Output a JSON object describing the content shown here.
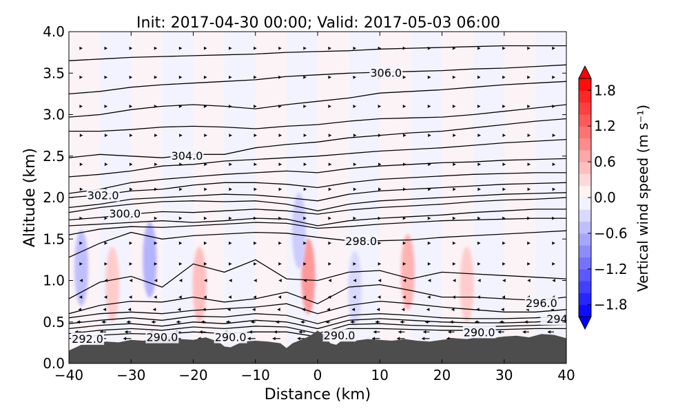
{
  "chart_data": {
    "type": "contour",
    "title": "Init: 2017-04-30 00:00; Valid: 2017-05-03 06:00",
    "xlabel": "Distance (km)",
    "ylabel": "Altitude (km)",
    "xlim": [
      -40,
      40
    ],
    "ylim": [
      0.0,
      4.0
    ],
    "xticks": [
      -40,
      -30,
      -20,
      -10,
      0,
      10,
      20,
      30,
      40
    ],
    "xtick_labels": [
      "−40",
      "−30",
      "−20",
      "−10",
      "0",
      "10",
      "20",
      "30",
      "40"
    ],
    "yticks": [
      0.0,
      0.5,
      1.0,
      1.5,
      2.0,
      2.5,
      3.0,
      3.5,
      4.0
    ],
    "ytick_labels": [
      "0.0",
      "0.5",
      "1.0",
      "1.5",
      "2.0",
      "2.5",
      "3.0",
      "3.5",
      "4.0"
    ],
    "grid": false,
    "filled_field": {
      "name": "Vertical wind speed",
      "colormap": "bwr",
      "range": [
        -2.0,
        2.0
      ],
      "updrafts": [
        {
          "x": -33,
          "z": 0.95,
          "value": 0.4
        },
        {
          "x": -19,
          "z": 0.95,
          "value": 0.5
        },
        {
          "x": -1.5,
          "z": 1.05,
          "value": 0.8
        },
        {
          "x": 14.5,
          "z": 1.1,
          "value": 0.6
        },
        {
          "x": 24,
          "z": 0.95,
          "value": 0.4
        }
      ],
      "downdrafts": [
        {
          "x": -38,
          "z": 1.15,
          "value": -0.5
        },
        {
          "x": -27,
          "z": 1.25,
          "value": -0.6
        },
        {
          "x": -3,
          "z": 1.6,
          "value": -0.4
        },
        {
          "x": 6,
          "z": 0.9,
          "value": -0.3
        }
      ]
    },
    "contour_field": {
      "name": "Potential temperature",
      "labels": [
        {
          "text": "306.0",
          "x": 11,
          "z": 3.5
        },
        {
          "text": "304.0",
          "x": -21,
          "z": 2.5
        },
        {
          "text": "302.0",
          "x": -34.5,
          "z": 2.02
        },
        {
          "text": "300.0",
          "x": -31,
          "z": 1.8
        },
        {
          "text": "298.0",
          "x": 7,
          "z": 1.47
        },
        {
          "text": "296.0",
          "x": 36,
          "z": 0.72
        },
        {
          "text": "294",
          "x": 38.5,
          "z": 0.53
        },
        {
          "text": "292.0",
          "x": -37,
          "z": 0.29
        },
        {
          "text": "290.0",
          "x": -25,
          "z": 0.31
        },
        {
          "text": "290.0",
          "x": -14,
          "z": 0.31
        },
        {
          "text": "290.0",
          "x": 3.5,
          "z": 0.33
        },
        {
          "text": "290.0",
          "x": 26,
          "z": 0.37
        }
      ],
      "lines": [
        {
          "z": [
            3.65,
            3.67,
            3.69,
            3.7,
            3.71,
            3.72,
            3.73,
            3.75,
            3.76,
            3.77,
            3.79,
            3.8,
            3.81,
            3.82,
            3.83,
            3.83,
            3.83
          ]
        },
        {
          "z": [
            3.25,
            3.28,
            3.33,
            3.36,
            3.38,
            3.4,
            3.42,
            3.46,
            3.48,
            3.5,
            3.51,
            3.52,
            3.53,
            3.55,
            3.56,
            3.58,
            3.6
          ]
        },
        {
          "z": [
            2.97,
            3.0,
            3.06,
            3.1,
            3.12,
            3.1,
            3.07,
            3.12,
            3.16,
            3.2,
            3.26,
            3.28,
            3.3,
            3.33,
            3.36,
            3.38,
            3.4
          ]
        },
        {
          "z": [
            2.8,
            2.8,
            2.82,
            2.85,
            2.86,
            2.85,
            2.83,
            2.86,
            2.88,
            2.92,
            2.95,
            2.96,
            2.97,
            3.0,
            3.04,
            3.08,
            3.12
          ]
        },
        {
          "z": [
            2.48,
            2.52,
            2.5,
            2.48,
            2.52,
            2.52,
            2.6,
            2.64,
            2.67,
            2.72,
            2.75,
            2.78,
            2.8,
            2.84,
            2.88,
            2.92,
            2.95
          ]
        },
        {
          "z": [
            2.25,
            2.28,
            2.32,
            2.38,
            2.4,
            2.44,
            2.46,
            2.48,
            2.5,
            2.53,
            2.56,
            2.58,
            2.6,
            2.63,
            2.66,
            2.68,
            2.7
          ]
        },
        {
          "z": [
            2.05,
            2.1,
            2.18,
            2.22,
            2.25,
            2.28,
            2.3,
            2.32,
            2.3,
            2.35,
            2.38,
            2.4,
            2.42,
            2.43,
            2.45,
            2.46,
            2.47
          ]
        },
        {
          "z": [
            2.0,
            2.03,
            2.08,
            2.1,
            2.15,
            2.18,
            2.18,
            2.16,
            2.12,
            2.18,
            2.22,
            2.24,
            2.26,
            2.28,
            2.29,
            2.3,
            2.3
          ]
        },
        {
          "z": [
            1.88,
            1.92,
            1.98,
            2.0,
            2.02,
            2.04,
            2.03,
            2.0,
            1.96,
            2.04,
            2.08,
            2.1,
            2.12,
            2.14,
            2.16,
            2.17,
            2.18
          ]
        },
        {
          "z": [
            1.82,
            1.88,
            1.92,
            1.95,
            1.96,
            1.95,
            1.96,
            1.92,
            1.84,
            1.92,
            1.96,
            1.98,
            2.0,
            2.02,
            2.04,
            2.05,
            2.06
          ]
        },
        {
          "z": [
            1.73,
            1.76,
            1.8,
            1.83,
            1.82,
            1.84,
            1.86,
            1.84,
            1.8,
            1.85,
            1.88,
            1.9,
            1.92,
            1.95,
            1.97,
            1.98,
            2.0
          ]
        },
        {
          "z": [
            1.66,
            1.68,
            1.7,
            1.72,
            1.7,
            1.72,
            1.75,
            1.74,
            1.66,
            1.72,
            1.75,
            1.77,
            1.79,
            1.82,
            1.84,
            1.86,
            1.86
          ]
        },
        {
          "z": [
            1.55,
            1.62,
            1.65,
            1.64,
            1.66,
            1.68,
            1.7,
            1.69,
            1.63,
            1.65,
            1.68,
            1.7,
            1.72,
            1.73,
            1.74,
            1.75,
            1.75
          ]
        },
        {
          "z": [
            1.28,
            1.45,
            1.58,
            1.5,
            1.54,
            1.56,
            1.58,
            1.57,
            1.52,
            1.48,
            1.48,
            1.49,
            1.52,
            1.54,
            1.56,
            1.58,
            1.6
          ]
        },
        {
          "z": [
            0.78,
            0.98,
            1.05,
            0.92,
            1.2,
            1.1,
            1.25,
            1.02,
            1.0,
            1.1,
            1.12,
            1.02,
            1.1,
            1.08,
            1.06,
            1.04,
            1.02
          ]
        },
        {
          "z": [
            0.6,
            0.7,
            0.75,
            0.74,
            0.8,
            0.74,
            0.78,
            0.86,
            0.72,
            0.92,
            0.95,
            0.88,
            0.8,
            0.8,
            0.78,
            0.76,
            0.8
          ]
        },
        {
          "z": [
            0.55,
            0.6,
            0.62,
            0.6,
            0.64,
            0.66,
            0.68,
            0.72,
            0.6,
            0.7,
            0.75,
            0.72,
            0.68,
            0.65,
            0.62,
            0.62,
            0.65
          ]
        },
        {
          "z": [
            0.48,
            0.52,
            0.55,
            0.52,
            0.57,
            0.56,
            0.6,
            0.58,
            0.48,
            0.58,
            0.6,
            0.58,
            0.55,
            0.54,
            0.54,
            0.55,
            0.57
          ]
        },
        {
          "z": [
            0.42,
            0.46,
            0.48,
            0.45,
            0.5,
            0.48,
            0.52,
            0.5,
            0.42,
            0.52,
            0.54,
            0.52,
            0.5,
            0.49,
            0.49,
            0.5,
            0.52
          ]
        },
        {
          "z": [
            0.36,
            0.4,
            0.42,
            0.4,
            0.44,
            0.42,
            0.45,
            0.44,
            0.36,
            0.47,
            0.48,
            0.46,
            0.45,
            0.44,
            0.45,
            0.46,
            0.47
          ]
        },
        {
          "z": [
            0.3,
            0.34,
            0.36,
            0.35,
            0.38,
            0.36,
            0.38,
            0.38,
            0.32,
            0.42,
            0.42,
            0.41,
            0.4,
            0.4,
            0.41,
            0.42,
            0.42
          ]
        }
      ]
    },
    "wind_vectors": {
      "rows": [
        {
          "z": 0.3,
          "dx": -1.6,
          "dz": 0.0
        },
        {
          "z": 0.38,
          "dx": -1.3,
          "dz": 0.01
        },
        {
          "z": 0.5,
          "dx": -0.9,
          "dz": 0.0
        },
        {
          "z": 0.65,
          "dx": -0.6,
          "dz": 0.0
        },
        {
          "z": 0.8,
          "dx": -0.4,
          "dz": 0.0
        },
        {
          "z": 1.0,
          "dx": -0.3,
          "dz": 0.0
        },
        {
          "z": 1.2,
          "dx": 0.2,
          "dz": 0.0
        },
        {
          "z": 1.45,
          "dx": 0.2,
          "dz": 0.0
        },
        {
          "z": 1.75,
          "dx": 0.2,
          "dz": 0.0
        },
        {
          "z": 2.1,
          "dx": 0.25,
          "dz": 0.0
        },
        {
          "z": 2.4,
          "dx": 0.25,
          "dz": 0.0
        },
        {
          "z": 2.75,
          "dx": 0.25,
          "dz": 0.0
        },
        {
          "z": 3.1,
          "dx": 0.2,
          "dz": 0.0
        },
        {
          "z": 3.45,
          "dx": 0.2,
          "dz": 0.0
        },
        {
          "z": 3.8,
          "dx": 0.2,
          "dz": 0.0
        }
      ],
      "x_spacing": 4
    },
    "terrain": {
      "x": [
        -40,
        -38,
        -36,
        -34,
        -32,
        -30,
        -28,
        -26,
        -24,
        -22,
        -20,
        -18,
        -16,
        -15,
        -14,
        -12,
        -10,
        -8,
        -6,
        -5,
        -4,
        -3,
        -2,
        -1,
        0,
        1,
        2,
        3,
        4,
        6,
        8,
        10,
        12,
        14,
        16,
        18,
        20,
        22,
        24,
        26,
        28,
        30,
        32,
        34,
        36,
        38,
        40
      ],
      "z": [
        0.15,
        0.22,
        0.24,
        0.26,
        0.25,
        0.28,
        0.27,
        0.3,
        0.32,
        0.29,
        0.28,
        0.31,
        0.26,
        0.2,
        0.19,
        0.26,
        0.27,
        0.26,
        0.24,
        0.18,
        0.24,
        0.27,
        0.3,
        0.34,
        0.39,
        0.34,
        0.24,
        0.22,
        0.28,
        0.27,
        0.29,
        0.28,
        0.27,
        0.29,
        0.27,
        0.26,
        0.28,
        0.3,
        0.29,
        0.31,
        0.3,
        0.32,
        0.33,
        0.31,
        0.35,
        0.34,
        0.3
      ],
      "color": "#4d4d4d"
    },
    "colorbar": {
      "label": "Vertical wind speed (m s⁻¹)",
      "vmin": -2.0,
      "vmax": 2.0,
      "levels": 20,
      "ticks": [
        -1.8,
        -1.2,
        -0.6,
        0.0,
        0.6,
        1.2,
        1.8
      ],
      "tick_labels": [
        "−1.8",
        "−1.2",
        "−0.6",
        "0.0",
        "0.6",
        "1.2",
        "1.8"
      ],
      "extend": "both"
    }
  }
}
